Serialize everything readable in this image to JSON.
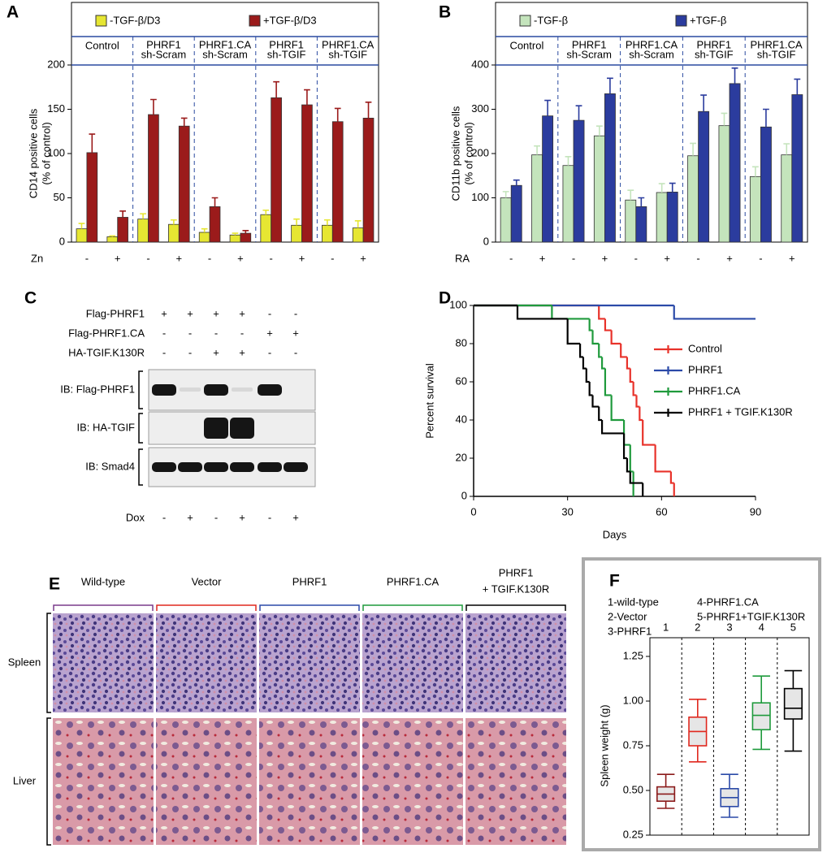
{
  "chart_data": [
    {
      "type": "bar",
      "panel_label": "A",
      "y_label": [
        "CD14 positive cells",
        "(% of control)"
      ],
      "x_label": "Zn",
      "groups": [
        [
          "Control"
        ],
        [
          "PHRF1",
          "sh-Scram"
        ],
        [
          "PHRF1.CA",
          "sh-Scram"
        ],
        [
          "PHRF1",
          "sh-TGIF"
        ],
        [
          "PHRF1.CA",
          "sh-TGIF"
        ]
      ],
      "categories": [
        "-",
        "+",
        "-",
        "+",
        "-",
        "+",
        "-",
        "+",
        "-",
        "+"
      ],
      "series": [
        {
          "name": "-TGF-β/D3",
          "color": "#e6e632",
          "values": [
            15,
            6,
            26,
            20,
            11,
            8,
            31,
            19,
            19,
            16
          ],
          "errors": [
            6,
            1,
            6,
            5,
            4,
            2,
            5,
            7,
            6,
            8
          ]
        },
        {
          "name": "+TGF-β/D3",
          "color": "#9b1b1b",
          "values": [
            101,
            28,
            144,
            131,
            40,
            10,
            163,
            155,
            136,
            140
          ],
          "errors": [
            21,
            7,
            17,
            9,
            10,
            3,
            18,
            17,
            15,
            18
          ]
        }
      ],
      "ylim": [
        0,
        200
      ],
      "yticks": [
        0,
        50,
        100,
        150,
        200
      ]
    },
    {
      "type": "bar",
      "panel_label": "B",
      "y_label": [
        "CD11b positive cells",
        "(% of control)"
      ],
      "x_label": "RA",
      "groups": [
        [
          "Control"
        ],
        [
          "PHRF1",
          "sh-Scram"
        ],
        [
          "PHRF1.CA",
          "sh-Scram"
        ],
        [
          "PHRF1",
          "sh-TGIF"
        ],
        [
          "PHRF1.CA",
          "sh-TGIF"
        ]
      ],
      "categories": [
        "-",
        "+",
        "-",
        "+",
        "-",
        "+",
        "-",
        "+",
        "-",
        "+"
      ],
      "series": [
        {
          "name": "-TGF-β",
          "color": "#c4e4bc",
          "values": [
            100,
            197,
            173,
            240,
            95,
            112,
            195,
            263,
            148,
            197
          ],
          "errors": [
            14,
            20,
            20,
            22,
            22,
            20,
            28,
            28,
            22,
            25
          ]
        },
        {
          "name": "+TGF-β",
          "color": "#2b3c9e",
          "values": [
            128,
            285,
            275,
            335,
            80,
            113,
            295,
            358,
            260,
            333
          ],
          "errors": [
            12,
            35,
            33,
            35,
            20,
            20,
            37,
            35,
            40,
            35
          ]
        }
      ],
      "ylim": [
        0,
        400
      ],
      "yticks": [
        0,
        100,
        200,
        300,
        400
      ]
    },
    {
      "type": "step",
      "panel_label": "D",
      "x_label": "Days",
      "y_label": "Percent survival",
      "series": [
        {
          "name": "Control",
          "color": "#e8322a",
          "x": [
            0,
            40,
            42,
            44,
            47,
            49,
            50,
            51,
            52,
            53,
            54,
            58,
            63,
            64
          ],
          "values": [
            100,
            93,
            87,
            80,
            73,
            67,
            60,
            53,
            47,
            40,
            27,
            13,
            7,
            0
          ]
        },
        {
          "name": "PHRF1",
          "color": "#2b4aa8",
          "x": [
            0,
            64,
            90
          ],
          "values": [
            100,
            93,
            93
          ]
        },
        {
          "name": "PHRF1.CA",
          "color": "#1f9a3c",
          "x": [
            0,
            25,
            37,
            38,
            40,
            41,
            42,
            44,
            48,
            50,
            51
          ],
          "values": [
            100,
            93,
            87,
            80,
            73,
            67,
            53,
            40,
            27,
            13,
            0
          ]
        },
        {
          "name": "PHRF1 + TGIF.K130R",
          "color": "#000000",
          "x": [
            0,
            14,
            30,
            34,
            35,
            36,
            37,
            38,
            40,
            41,
            48,
            49,
            50,
            54
          ],
          "values": [
            100,
            93,
            80,
            73,
            67,
            60,
            53,
            47,
            40,
            33,
            20,
            13,
            7,
            0
          ]
        }
      ],
      "xlim": [
        0,
        90
      ],
      "xticks": [
        0,
        30,
        60,
        90
      ],
      "ylim": [
        0,
        100
      ],
      "yticks": [
        0,
        20,
        40,
        60,
        80,
        100
      ]
    },
    {
      "type": "box",
      "panel_label": "F",
      "y_label": "Spleen weight (g)",
      "legend": [
        "1-wild-type",
        "2-Vector",
        "3-PHRF1",
        "4-PHRF1.CA",
        "5-PHRF1+TGIF.K130R"
      ],
      "categories": [
        "1",
        "2",
        "3",
        "4",
        "5"
      ],
      "colors": [
        "#8b1a1a",
        "#e0281e",
        "#2b4aa8",
        "#1f9a3c",
        "#000000"
      ],
      "min": [
        0.4,
        0.66,
        0.35,
        0.73,
        0.72
      ],
      "q1": [
        0.44,
        0.75,
        0.41,
        0.84,
        0.9
      ],
      "median": [
        0.48,
        0.83,
        0.46,
        0.92,
        0.96
      ],
      "q3": [
        0.52,
        0.91,
        0.51,
        0.99,
        1.07
      ],
      "max": [
        0.59,
        1.01,
        0.59,
        1.14,
        1.17
      ],
      "ylim": [
        0.25,
        1.25
      ],
      "yticks": [
        0.25,
        {
          "value": 0.5,
          "label": "0.50"
        },
        0.75,
        {
          "value": 1,
          "label": "1.00"
        },
        1.25
      ]
    }
  ],
  "blot": {
    "panel_label": "C",
    "conditions": [
      {
        "label": "Flag-PHRF1",
        "signs": [
          "+",
          "+",
          "+",
          "+",
          "-",
          "-"
        ]
      },
      {
        "label": "Flag-PHRF1.CA",
        "signs": [
          "-",
          "-",
          "-",
          "-",
          "+",
          "+"
        ]
      },
      {
        "label": "HA-TGIF.K130R",
        "signs": [
          "-",
          "-",
          "+",
          "+",
          "-",
          "-"
        ]
      }
    ],
    "probes": [
      "IB: Flag-PHRF1",
      "IB: HA-TGIF",
      "IB: Smad4"
    ],
    "treatment": {
      "label": "Dox",
      "signs": [
        "-",
        "+",
        "-",
        "+",
        "-",
        "+"
      ]
    }
  },
  "histology": {
    "panel_label": "E",
    "columns": [
      [
        "Wild-type"
      ],
      [
        "Vector"
      ],
      [
        "PHRF1"
      ],
      [
        "PHRF1.CA"
      ],
      [
        "PHRF1",
        "+ TGIF.K130R"
      ]
    ],
    "rows": [
      "Spleen",
      "Liver"
    ]
  }
}
